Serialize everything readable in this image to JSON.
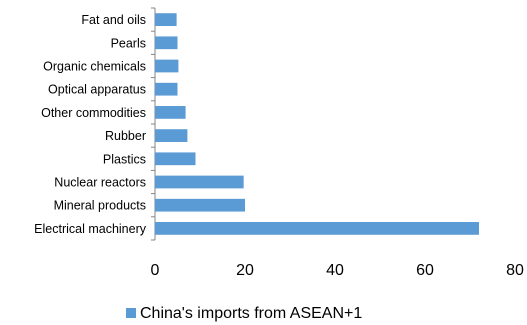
{
  "chart_data": {
    "type": "bar",
    "orientation": "horizontal",
    "categories": [
      "Electrical machinery",
      "Mineral products",
      "Nuclear reactors",
      "Plastics",
      "Rubber",
      "Other commodities",
      "Optical apparatus",
      "Organic chemicals",
      "Pearls",
      "Fat and oils"
    ],
    "series": [
      {
        "name": "China's imports from ASEAN+1",
        "color": "#5B9BD5",
        "values": [
          72,
          20,
          19.7,
          9,
          7.2,
          6.8,
          5,
          5.2,
          5,
          4.8
        ]
      }
    ],
    "xlim": [
      0,
      80
    ],
    "xticks": [
      "0",
      "20",
      "40",
      "60",
      "80"
    ],
    "title": "",
    "xlabel": "",
    "ylabel": "",
    "grid": false,
    "legend_position": "bottom"
  }
}
